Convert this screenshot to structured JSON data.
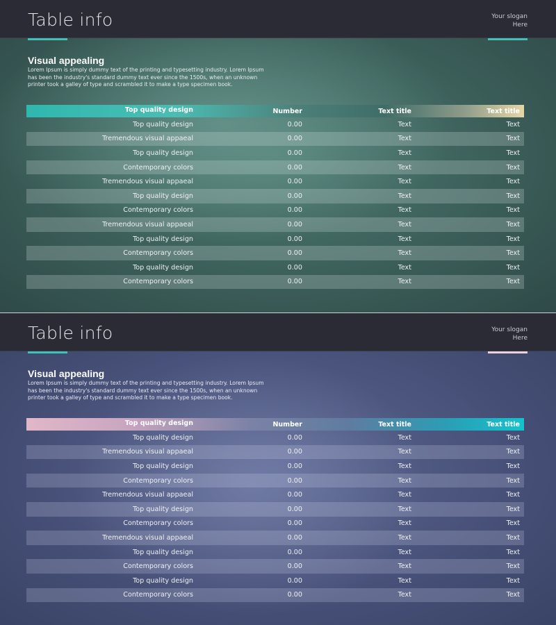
{
  "panels": [
    {
      "header_title": "Table info",
      "slogan": "Your slogan\nHere",
      "accent": "#3fc3b8",
      "slogan_accent": "#3fc3b8",
      "intro_heading": "Visual appealing",
      "intro_text": "Lorem Ipsum is simply dummy text of the printing and typesetting industry. Lorem Ipsum has been the industry's standard dummy text ever since the 1500s, when an unknown printer took a galley of type and scrambled it to make a type specimen book.",
      "columns": [
        "Top quality design",
        "Number",
        "Text title",
        "Text title"
      ],
      "rows": [
        [
          "Top quality design",
          "0.00",
          "Text",
          "Text"
        ],
        [
          "Tremendous visual appaeal",
          "0.00",
          "Text",
          "Text"
        ],
        [
          "Top quality design",
          "0.00",
          "Text",
          "Text"
        ],
        [
          "Contemporary colors",
          "0.00",
          "Text",
          "Text"
        ],
        [
          "Tremendous visual appaeal",
          "0.00",
          "Text",
          "Text"
        ],
        [
          "Top quality design",
          "0.00",
          "Text",
          "Text"
        ],
        [
          "Contemporary colors",
          "0.00",
          "Text",
          "Text"
        ],
        [
          "Tremendous visual appaeal",
          "0.00",
          "Text",
          "Text"
        ],
        [
          "Top quality design",
          "0.00",
          "Text",
          "Text"
        ],
        [
          "Contemporary colors",
          "0.00",
          "Text",
          "Text"
        ],
        [
          "Top quality design",
          "0.00",
          "Text",
          "Text"
        ],
        [
          "Contemporary colors",
          "0.00",
          "Text",
          "Text"
        ]
      ]
    },
    {
      "header_title": "Table info",
      "slogan": "Your slogan\nHere",
      "accent": "#3fc3b8",
      "slogan_accent": "#e8d3dc",
      "intro_heading": "Visual appealing",
      "intro_text": "Lorem Ipsum is simply dummy text of the printing and typesetting industry. Lorem Ipsum has been the industry's standard dummy text ever since the 1500s, when an unknown printer took a galley of type and scrambled it to make a type specimen book.",
      "columns": [
        "Top quality design",
        "Number",
        "Text title",
        "Text title"
      ],
      "rows": [
        [
          "Top quality design",
          "0.00",
          "Text",
          "Text"
        ],
        [
          "Tremendous visual appaeal",
          "0.00",
          "Text",
          "Text"
        ],
        [
          "Top quality design",
          "0.00",
          "Text",
          "Text"
        ],
        [
          "Contemporary colors",
          "0.00",
          "Text",
          "Text"
        ],
        [
          "Tremendous visual appaeal",
          "0.00",
          "Text",
          "Text"
        ],
        [
          "Top quality design",
          "0.00",
          "Text",
          "Text"
        ],
        [
          "Contemporary colors",
          "0.00",
          "Text",
          "Text"
        ],
        [
          "Tremendous visual appaeal",
          "0.00",
          "Text",
          "Text"
        ],
        [
          "Top quality design",
          "0.00",
          "Text",
          "Text"
        ],
        [
          "Contemporary colors",
          "0.00",
          "Text",
          "Text"
        ],
        [
          "Top quality design",
          "0.00",
          "Text",
          "Text"
        ],
        [
          "Contemporary colors",
          "0.00",
          "Text",
          "Text"
        ]
      ]
    }
  ]
}
